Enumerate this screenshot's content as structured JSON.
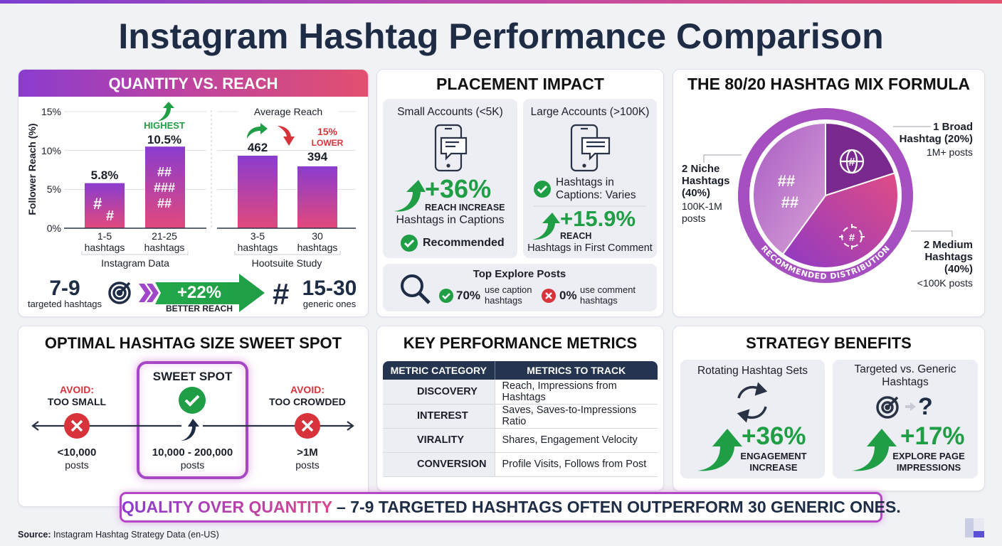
{
  "title": "Instagram Hashtag Performance Comparison",
  "colors": {
    "purple": "#8a3ccf",
    "pink": "#e0467e",
    "green": "#1f9e45",
    "red": "#d8323a",
    "navy": "#1e2d45"
  },
  "quantity": {
    "title": "QUANTITY VS. REACH",
    "highest": "HIGHEST",
    "lower_pct": "15%",
    "lower_word": "LOWER",
    "left_num": "7-9",
    "left_text": "targeted hashtags",
    "arrow_value": "+22%",
    "arrow_text": "BETTER REACH",
    "right_num": "15-30",
    "right_text": "generic ones",
    "icons": [
      "target-icon",
      "chevrons-icon",
      "hash-icon"
    ]
  },
  "placement": {
    "title": "PLACEMENT IMPACT",
    "small": {
      "title": "Small Accounts (<5K)",
      "value": "+36%",
      "value_label": "REACH INCREASE",
      "desc": "Hashtags in Captions",
      "badge": "Recommended"
    },
    "large": {
      "title": "Large Accounts (>100K)",
      "check_line1": "Hashtags in",
      "check_line2": "Captions: Varies",
      "value": "+15.9%",
      "value_label": "REACH",
      "desc": "Hashtags in First Comment"
    },
    "explore": {
      "title": "Top Explore Posts",
      "caption_pct": "70%",
      "caption_l1": "use caption",
      "caption_l2": "hashtags",
      "comment_pct": "0%",
      "comment_l1": "use comment",
      "comment_l2": "hashtags"
    }
  },
  "mix": {
    "title": "THE 80/20 HASHTAG MIX FORMULA",
    "ring_text": "RECOMMENDED DISTRIBUTION",
    "broad": {
      "l1": "1 Broad",
      "l2": "Hashtag (20%)",
      "posts": "1M+ posts"
    },
    "niche": {
      "l1": "2 Niche",
      "l2": "Hashtags",
      "l3": "(40%)",
      "posts1": "100K-1M",
      "posts2": "posts"
    },
    "medium": {
      "l1": "2 Medium",
      "l2": "Hashtags",
      "l3": "(40%)",
      "posts": "<100K posts"
    }
  },
  "sweetspot": {
    "title": "OPTIMAL HASHTAG SIZE SWEET SPOT",
    "center_title": "SWEET SPOT",
    "left": {
      "avoid": "AVOID:",
      "label": "TOO SMALL",
      "value": "<10,000",
      "unit": "posts"
    },
    "center": {
      "value": "10,000 - 200,000",
      "unit": "posts"
    },
    "right": {
      "avoid": "AVOID:",
      "label": "TOO CROWDED",
      "value": ">1M",
      "unit": "posts"
    }
  },
  "metrics": {
    "title": "KEY PERFORMANCE METRICS",
    "headers": [
      "METRIC CATEGORY",
      "METRICS TO TRACK"
    ],
    "rows": [
      {
        "category": "DISCOVERY",
        "metrics": "Reach, Impressions from Hashtags",
        "icon": "compass-icon"
      },
      {
        "category": "INTEREST",
        "metrics": "Saves, Saves-to-Impressions Ratio",
        "icon": "heart-icon"
      },
      {
        "category": "VIRALITY",
        "metrics": "Shares, Engagement Velocity",
        "icon": "share-icon"
      },
      {
        "category": "CONVERSION",
        "metrics": "Profile Visits, Follows from Post",
        "icon": "user-icon"
      }
    ]
  },
  "benefits": {
    "title": "STRATEGY BENEFITS",
    "rotating": {
      "title": "Rotating Hashtag Sets",
      "value": "+36%",
      "l1": "ENGAGEMENT",
      "l2": "INCREASE"
    },
    "targeted": {
      "title1": "Targeted vs. Generic",
      "title2": "Hashtags",
      "value": "+17%",
      "l1": "EXPLORE PAGE",
      "l2": "IMPRESSIONS"
    }
  },
  "banner": {
    "highlight": "QUALITY OVER QUANTITY",
    "rest": " – 7-9 TARGETED HASHTAGS OFTEN OUTPERFORM 30 GENERIC ONES."
  },
  "source": {
    "label": "Source:",
    "text": " Instagram Hashtag Strategy Data (en-US)"
  },
  "chart_data": [
    {
      "type": "bar",
      "ylabel": "Follower Reach (%)",
      "ylim": [
        0,
        15
      ],
      "yticks": [
        "0%",
        "5%",
        "10%",
        "15%"
      ],
      "grid": true,
      "categories": [
        "1-5 hashtags",
        "21-25 hashtags"
      ],
      "values": [
        5.8,
        10.5
      ],
      "data_labels": [
        "5.8%",
        "10.5%"
      ],
      "group_label": "Instagram Data"
    },
    {
      "type": "bar",
      "title": "Average Reach",
      "grid": true,
      "categories": [
        "3-5 hashtags",
        "30 hashtags"
      ],
      "values": [
        462,
        394
      ],
      "data_labels": [
        "462",
        "394"
      ],
      "group_label": "Hootsuite Study"
    },
    {
      "type": "pie",
      "slices": [
        {
          "label": "1 Broad Hashtag",
          "value": 20,
          "color": "#7a2a8e"
        },
        {
          "label": "2 Medium Hashtags",
          "value": 40,
          "color": "#c0409a"
        },
        {
          "label": "2 Niche Hashtags",
          "value": 40,
          "color": "#c384cf"
        }
      ]
    }
  ]
}
